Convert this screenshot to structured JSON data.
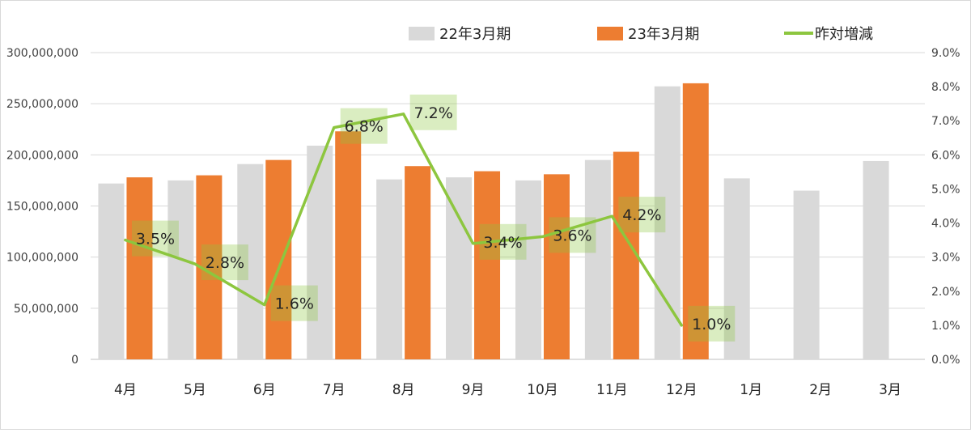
{
  "chart_data": {
    "type": "bar",
    "categories": [
      "4月",
      "5月",
      "6月",
      "7月",
      "8月",
      "9月",
      "10月",
      "11月",
      "12月",
      "1月",
      "2月",
      "3月"
    ],
    "series": [
      {
        "name": "22年3月期",
        "kind": "bar",
        "axis": "left",
        "color": "#d9d9d9",
        "values": [
          172000000,
          175000000,
          191000000,
          209000000,
          176000000,
          178000000,
          175000000,
          195000000,
          267000000,
          177000000,
          165000000,
          194000000
        ]
      },
      {
        "name": "23年3月期",
        "kind": "bar",
        "axis": "left",
        "color": "#ed7d31",
        "values": [
          178000000,
          180000000,
          195000000,
          223000000,
          189000000,
          184000000,
          181000000,
          203000000,
          270000000,
          null,
          null,
          null
        ]
      },
      {
        "name": "昨対増減",
        "kind": "line",
        "axis": "right",
        "color": "#8dc63f",
        "values": [
          0.035,
          0.028,
          0.016,
          0.068,
          0.072,
          0.034,
          0.036,
          0.042,
          0.01,
          null,
          null,
          null
        ],
        "data_labels": [
          "3.5%",
          "2.8%",
          "1.6%",
          "6.8%",
          "7.2%",
          "3.4%",
          "3.6%",
          "4.2%",
          "1.0%"
        ]
      }
    ],
    "y_left": {
      "lim": [
        0,
        300000000
      ],
      "ticks": [
        0,
        50000000,
        100000000,
        150000000,
        200000000,
        250000000,
        300000000
      ],
      "tick_labels": [
        "0",
        "50,000,000",
        "100,000,000",
        "150,000,000",
        "200,000,000",
        "250,000,000",
        "300,000,000"
      ]
    },
    "y_right": {
      "lim": [
        0,
        0.09
      ],
      "ticks": [
        0,
        0.01,
        0.02,
        0.03,
        0.04,
        0.05,
        0.06,
        0.07,
        0.08,
        0.09
      ],
      "tick_labels": [
        "0.0%",
        "1.0%",
        "2.0%",
        "3.0%",
        "4.0%",
        "5.0%",
        "6.0%",
        "7.0%",
        "8.0%",
        "9.0%"
      ]
    },
    "grid": true,
    "legend": "top",
    "title": "",
    "xlabel": "",
    "ylabel": ""
  }
}
